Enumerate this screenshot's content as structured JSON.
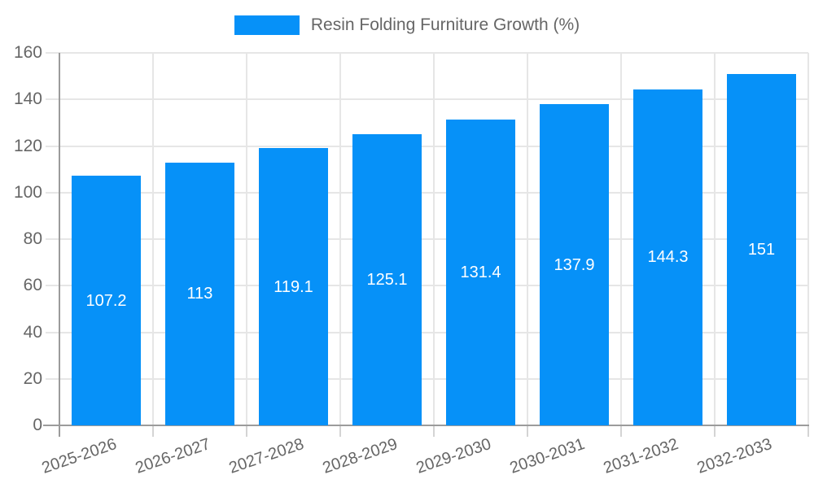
{
  "legend": {
    "label": "Resin Folding Furniture Growth (%)"
  },
  "chart_data": {
    "type": "bar",
    "title": "Resin Folding Furniture Growth (%)",
    "categories": [
      "2025-2026",
      "2026-2027",
      "2027-2028",
      "2028-2029",
      "2029-2030",
      "2030-2031",
      "2031-2032",
      "2032-2033"
    ],
    "series": [
      {
        "name": "Resin Folding Furniture Growth (%)",
        "values": [
          107.2,
          113,
          119.1,
          125.1,
          131.4,
          137.9,
          144.3,
          151
        ]
      }
    ],
    "data_labels": [
      "107.2",
      "113",
      "119.1",
      "125.1",
      "131.4",
      "137.9",
      "144.3",
      "151"
    ],
    "xlabel": "",
    "ylabel": "",
    "ylim": [
      0,
      160
    ],
    "yticks": [
      0,
      20,
      40,
      60,
      80,
      100,
      120,
      140,
      160
    ],
    "grid": true,
    "legend_position": "top",
    "colors": {
      "bar": "#0691f8",
      "bar_label": "#ffffff",
      "axis": "#9b9b9b",
      "grid": "#e6e6e6",
      "tick_grid": "#d4d4d4",
      "text": "#666666"
    }
  }
}
